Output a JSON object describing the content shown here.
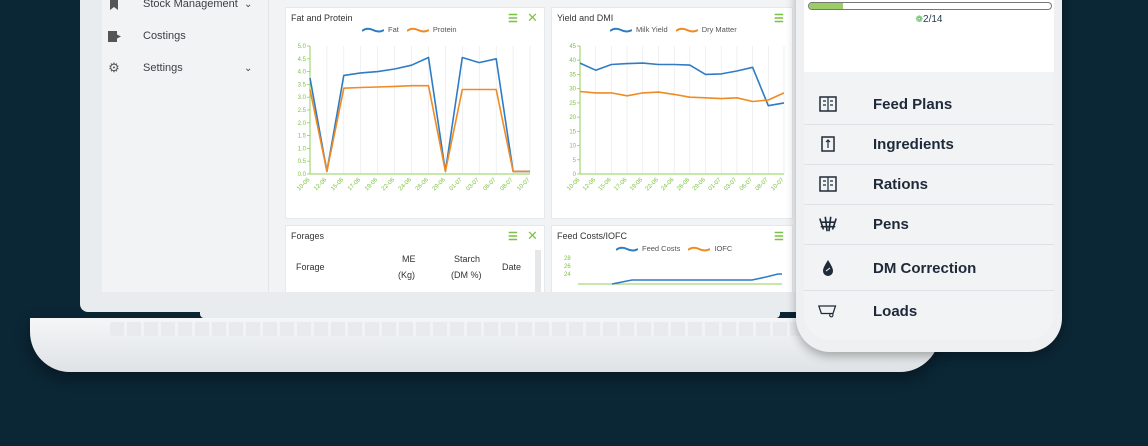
{
  "sidebar": {
    "items": [
      {
        "label": "Stock Management",
        "icon": "stock-icon",
        "has_chevron": true
      },
      {
        "label": "Costings",
        "icon": "costings-icon",
        "has_chevron": false
      },
      {
        "label": "Settings",
        "icon": "gear-icon",
        "has_chevron": true
      }
    ]
  },
  "panels": {
    "fat_protein": {
      "title": "Fat and Protein"
    },
    "yield_dmi": {
      "title": "Yield and DMI"
    },
    "forages": {
      "title": "Forages",
      "columns": [
        "Forage",
        "ME\n(Kg)",
        "Starch\n(DM %)",
        "Date"
      ],
      "col_forage": "Forage",
      "col_me_1": "ME",
      "col_me_2": "(Kg)",
      "col_starch_1": "Starch",
      "col_starch_2": "(DM %)",
      "col_date": "Date"
    },
    "feed_costs": {
      "title": "Feed Costs/IOFC"
    }
  },
  "chart_data": [
    {
      "type": "line",
      "title": "Fat and Protein",
      "x": [
        "10-06",
        "12-06",
        "15-06",
        "17-06",
        "19-06",
        "22-06",
        "24-06",
        "26-06",
        "29-06",
        "01-07",
        "03-07",
        "06-07",
        "08-07",
        "10-07"
      ],
      "ylim": [
        0,
        5
      ],
      "yticks": [
        "0.0",
        "0.5",
        "1.0",
        "1.5",
        "2.0",
        "2.5",
        "3.0",
        "3.5",
        "4.0",
        "4.5",
        "5.0"
      ],
      "series": [
        {
          "name": "Fat",
          "color": "#2f7cc4",
          "values": [
            3.75,
            0.1,
            3.85,
            3.95,
            4.0,
            4.1,
            4.25,
            4.55,
            0.1,
            4.55,
            4.35,
            4.5,
            0.1,
            0.1
          ]
        },
        {
          "name": "Protein",
          "color": "#f08a24",
          "values": [
            3.3,
            0.1,
            3.35,
            3.38,
            3.4,
            3.42,
            3.45,
            3.45,
            0.1,
            3.3,
            3.3,
            3.3,
            0.1,
            0.1
          ]
        }
      ]
    },
    {
      "type": "line",
      "title": "Yield and DMI",
      "x": [
        "10-06",
        "12-06",
        "15-06",
        "17-06",
        "19-06",
        "22-06",
        "24-06",
        "26-06",
        "29-06",
        "01-07",
        "03-07",
        "06-07",
        "08-07",
        "10-07"
      ],
      "ylim": [
        0,
        45
      ],
      "yticks": [
        "0",
        "5",
        "10",
        "15",
        "20",
        "25",
        "30",
        "35",
        "40",
        "45"
      ],
      "series": [
        {
          "name": "Milk Yield",
          "color": "#2f7cc4",
          "values": [
            39,
            36.5,
            38.5,
            38.8,
            39,
            38.5,
            38.5,
            38.3,
            35,
            35.2,
            36.2,
            37.5,
            24,
            25
          ]
        },
        {
          "name": "Dry Matter",
          "color": "#f08a24",
          "values": [
            29,
            28.5,
            28.5,
            27.5,
            28.5,
            28.8,
            28,
            27,
            26.8,
            26.5,
            26.8,
            25.5,
            26,
            28.5
          ]
        }
      ]
    },
    {
      "type": "line",
      "title": "Feed Costs/IOFC",
      "yticks": [
        "24",
        "26",
        "28"
      ],
      "series": [
        {
          "name": "Feed Costs",
          "color": "#2f7cc4"
        },
        {
          "name": "IOFC",
          "color": "#f08a24"
        }
      ]
    }
  ],
  "phone": {
    "progress_text": "2/14",
    "progress_value": 0.14,
    "menu": [
      {
        "label": "Feed Plans",
        "icon": "feed-plans-icon"
      },
      {
        "label": "Ingredients",
        "icon": "ingredients-icon"
      },
      {
        "label": "Rations",
        "icon": "rations-icon"
      },
      {
        "label": "Pens",
        "icon": "pens-icon"
      },
      {
        "label": "DM Correction",
        "icon": "dm-correction-icon"
      },
      {
        "label": "Loads",
        "icon": "loads-icon"
      }
    ]
  },
  "colors": {
    "accent": "#7cc242",
    "background": "#0b2635",
    "series_blue": "#2f7cc4",
    "series_orange": "#f08a24"
  }
}
